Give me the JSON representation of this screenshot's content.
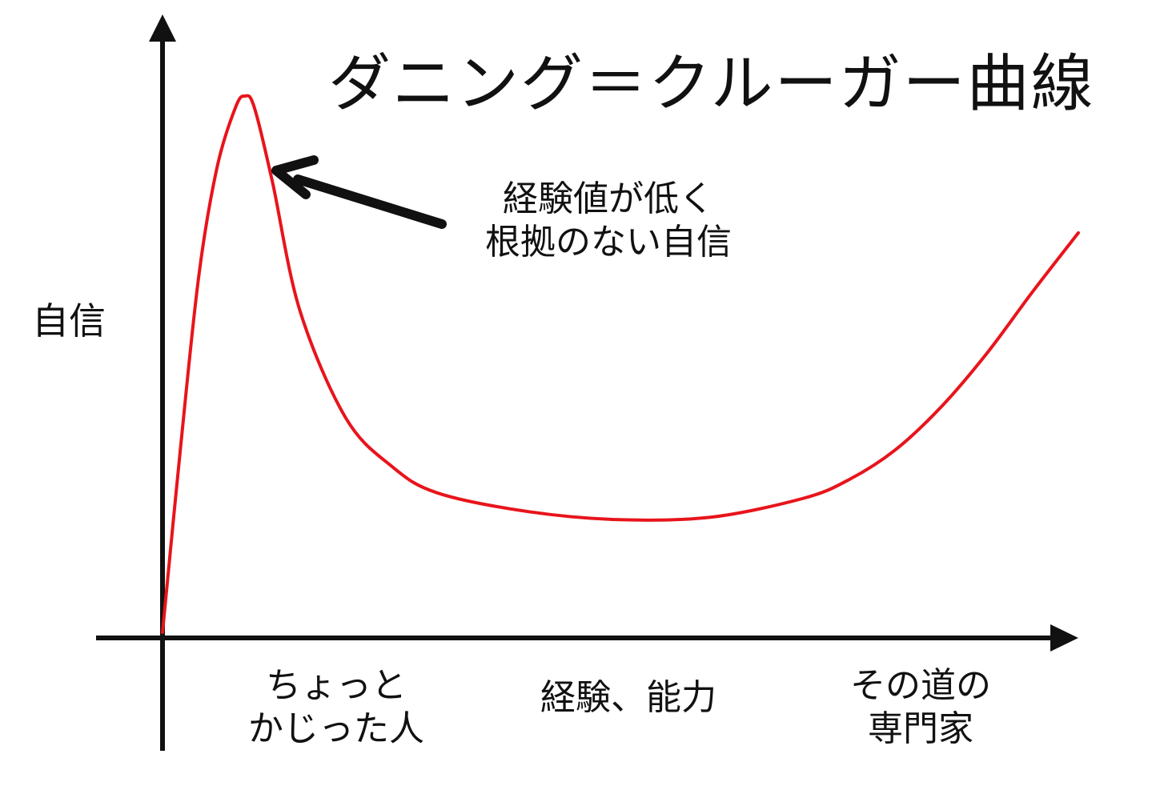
{
  "chart_data": {
    "type": "line",
    "title": "ダニング＝クルーガー曲線",
    "ylabel": "自信",
    "xlabel": "",
    "x_stage_labels": [
      [
        "ちょっと",
        "かじった人"
      ],
      [
        "経験、能力"
      ],
      [
        "その道の",
        "専門家"
      ]
    ],
    "annotation": {
      "lines": [
        "経験値が低く",
        "根拠のない自信"
      ],
      "points_to": "peak"
    },
    "series": [
      {
        "color": "#e8141b",
        "x": [
          0,
          2,
          4,
          6,
          8,
          9,
          10,
          12,
          15,
          20,
          25,
          30,
          40,
          50,
          60,
          70,
          75,
          80,
          85,
          90,
          95,
          100
        ],
        "y": [
          0,
          35,
          67,
          87,
          98,
          100,
          98,
          84,
          60,
          40,
          31,
          26,
          22.5,
          21,
          21.5,
          25,
          28.5,
          34,
          42,
          52,
          63.5,
          74.5
        ]
      }
    ],
    "xlim": [
      0,
      100
    ],
    "ylim": [
      0,
      100
    ],
    "axes": "arrows",
    "grid": false,
    "legend": false
  }
}
